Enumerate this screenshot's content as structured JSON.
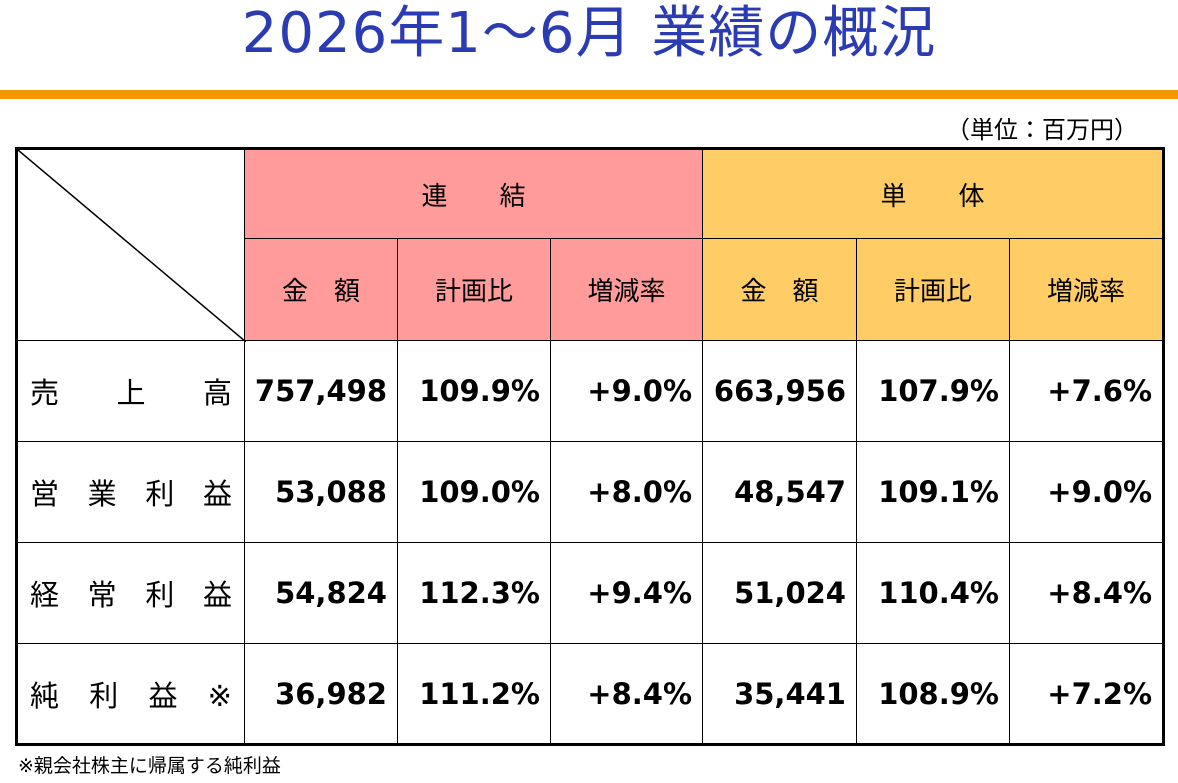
{
  "header": {
    "title": "2026年1～6月 業績の概況",
    "unit": "（単位：百万円）"
  },
  "table": {
    "groups": [
      "連　　結",
      "単　　体"
    ],
    "columns": [
      "金　額",
      "計画比",
      "増減率",
      "金　額",
      "計画比",
      "増減率"
    ],
    "rows": [
      {
        "label": "売　上　高",
        "cells": [
          "757,498",
          "109.9%",
          "+9.0%",
          "663,956",
          "107.9%",
          "+7.6%"
        ]
      },
      {
        "label": "営 業 利 益",
        "cells": [
          "53,088",
          "109.0%",
          "+8.0%",
          "48,547",
          "109.1%",
          "+9.0%"
        ]
      },
      {
        "label": "経 常 利 益",
        "cells": [
          "54,824",
          "112.3%",
          "+9.4%",
          "51,024",
          "110.4%",
          "+8.4%"
        ]
      },
      {
        "label": "純 利 益 ※",
        "cells": [
          "36,982",
          "111.2%",
          "+8.4%",
          "35,441",
          "108.9%",
          "+7.2%"
        ]
      }
    ]
  },
  "footnote": "※親会社株主に帰属する純利益"
}
